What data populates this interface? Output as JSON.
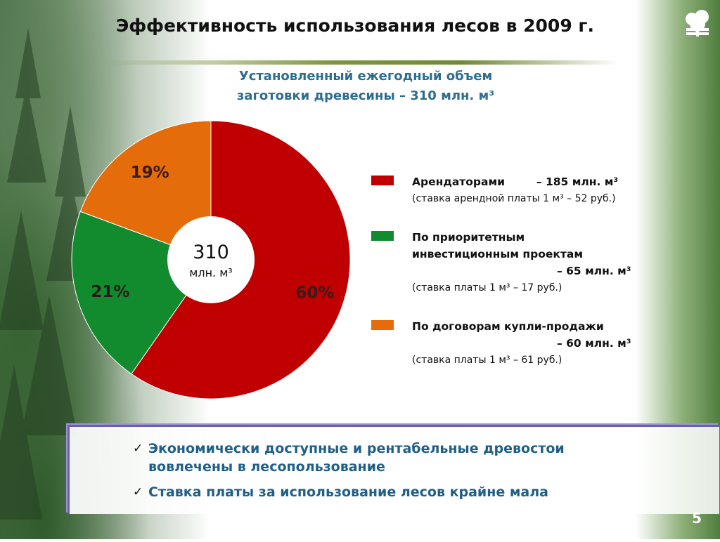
{
  "slide": {
    "title": "Эффективность использования лесов в 2009 г.",
    "subtitle_line1": "Установленный ежегодный объем",
    "subtitle_line2": "заготовки древесины – 310 млн. м³",
    "page_number": "5"
  },
  "chart_data": {
    "type": "pie",
    "center_value": "310",
    "center_unit": "млн. м³",
    "categories": [
      "Арендаторами",
      "По приоритетным инвестиционным проектам",
      "По договорам купли-продажи"
    ],
    "values": [
      185,
      65,
      60
    ],
    "percent_labels": [
      "60%",
      "21%",
      "19%"
    ],
    "colors": [
      "#c00000",
      "#128a2e",
      "#e46c0a"
    ]
  },
  "legend": [
    {
      "line1": "Арендаторами",
      "line1_value": "– 185 млн. м³",
      "note": "(ставка арендной платы 1 м³ – 52 руб.)"
    },
    {
      "line1": "По приоритетным",
      "line2": "инвестиционным проектам",
      "line3": "– 65 млн. м³",
      "note": "(ставка платы 1 м³ – 17 руб.)"
    },
    {
      "line1": "По договорам купли-продажи",
      "line2": "– 60 млн. м³",
      "note": "(ставка платы 1 м³ – 61 руб.)"
    }
  ],
  "bullets": [
    {
      "line1": "Экономически доступные и рентабельные древостои",
      "line2": "вовлечены в лесопользование"
    },
    {
      "line1": "Ставка платы за использование лесов крайне мала"
    }
  ],
  "icons": {
    "bullet": "checkmark-icon",
    "logo": "trees-logo-icon"
  }
}
